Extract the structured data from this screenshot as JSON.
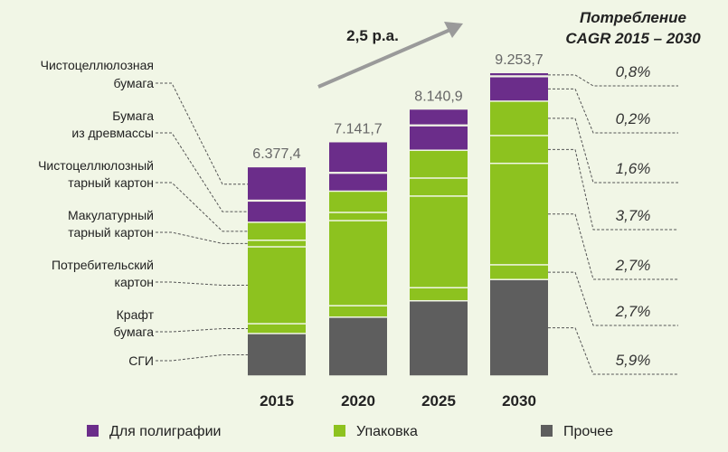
{
  "chart_data": {
    "type": "bar",
    "stacked": true,
    "categories": [
      "2015",
      "2020",
      "2025",
      "2030"
    ],
    "totals": [
      "6.377,4",
      "7.141,7",
      "8.140,9",
      "9.253,7"
    ],
    "total_values": [
      6377.4,
      7141.7,
      8140.9,
      9253.7
    ],
    "segments": [
      {
        "name": "СГИ",
        "group": "Прочее",
        "color": "#5e5e5e",
        "values": [
          1300,
          1800,
          2300,
          2950
        ]
      },
      {
        "name": "Крафт бумага",
        "group": "Упаковка",
        "color": "#8dc21f",
        "values": [
          300,
          350,
          400,
          450
        ]
      },
      {
        "name": "Потребительский картон",
        "group": "Упаковка",
        "color": "#8dc21f",
        "values": [
          2350,
          2600,
          2800,
          3100
        ]
      },
      {
        "name": "Макулатурный тарный картон",
        "group": "Упаковка",
        "color": "#8dc21f",
        "values": [
          200,
          250,
          550,
          850
        ]
      },
      {
        "name": "Чистоцеллюлозный тарный картон",
        "group": "Упаковка",
        "color": "#8dc21f",
        "values": [
          550,
          650,
          850,
          1050
        ]
      },
      {
        "name": "Бумага из древмассы",
        "group": "Для полиграфии",
        "color": "#6b2d8a",
        "values": [
          650,
          550,
          750,
          750
        ]
      },
      {
        "name": "Чистоцеллюлозная бумага",
        "group": "Для полиграфии",
        "color": "#6b2d8a",
        "values": [
          1027.4,
          941.7,
          490.9,
          103.7
        ]
      }
    ],
    "labels_left": [
      [
        "Чистоцеллюлозная",
        "бумага"
      ],
      [
        "Бумага",
        "из древмассы"
      ],
      [
        "Чистоцеллюлозный",
        "тарный картон"
      ],
      [
        "Макулатурный",
        "тарный картон"
      ],
      [
        "Потребительский",
        "картон"
      ],
      [
        "Крафт",
        "бумага"
      ],
      [
        "СГИ"
      ]
    ],
    "cagr_title": [
      "Потребление",
      "CAGR 2015 – 2030"
    ],
    "cagr_values": [
      "0,8%",
      "0,2%",
      "1,6%",
      "3,7%",
      "2,7%",
      "2,7%",
      "5,9%"
    ],
    "growth_label": "2,5 р.а.",
    "legend": [
      {
        "label": "Для полиграфии",
        "color": "#6b2d8a"
      },
      {
        "label": "Упаковка",
        "color": "#8dc21f"
      },
      {
        "label": "Прочее",
        "color": "#5e5e5e"
      }
    ],
    "ylim": [
      0,
      10000
    ],
    "grid": false
  }
}
